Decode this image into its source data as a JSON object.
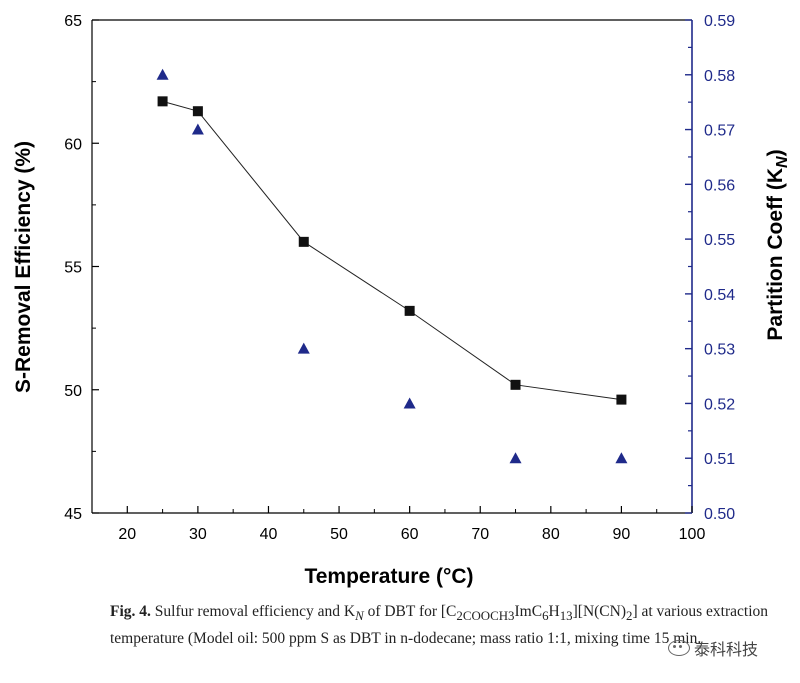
{
  "chart_data": {
    "type": "scatter",
    "xlabel": "Temperature (°C)",
    "ylabel": "S-Removal Efficiency (%)",
    "y2label": "Partition Coeff (K",
    "y2label_sub": "N",
    "xlim": [
      15,
      100
    ],
    "ylim": [
      45,
      65
    ],
    "y2lim": [
      0.5,
      0.59
    ],
    "xticks": [
      "20",
      "30",
      "40",
      "50",
      "60",
      "70",
      "80",
      "90",
      "100"
    ],
    "yticks": [
      "45",
      "50",
      "55",
      "60",
      "65"
    ],
    "y2ticks": [
      "0.50",
      "0.51",
      "0.52",
      "0.53",
      "0.54",
      "0.55",
      "0.56",
      "0.57",
      "0.58",
      "0.59"
    ],
    "series": [
      {
        "marker": "square",
        "axis": "left",
        "line": true,
        "color": "#111111",
        "x": [
          25,
          30,
          45,
          60,
          75,
          90
        ],
        "y": [
          61.7,
          61.3,
          56.0,
          53.2,
          50.2,
          49.6
        ]
      },
      {
        "marker": "triangle",
        "axis": "right",
        "line": false,
        "color": "#1f2a8a",
        "x": [
          25,
          30,
          45,
          60,
          75,
          90
        ],
        "y": [
          0.58,
          0.57,
          0.53,
          0.52,
          0.51,
          0.51
        ]
      }
    ],
    "right_axis_color": "#1f2a8a"
  },
  "caption": {
    "label": "Fig. 4.",
    "text": "Sulfur removal efficiency and K",
    "sub": "N",
    "text2": " of DBT for [C",
    "sub2": "2COOCH3",
    "text3": "ImC",
    "sub3": "6",
    "text4": "H",
    "sub4": "13",
    "text5": "][N(CN)",
    "sub5": "2",
    "text6": "] at various extraction temperature (Model oil: 500 ppm S as DBT in n-dodecane; mass ratio 1:1, mixing time 15 min."
  },
  "watermark": {
    "text": "泰科科技"
  }
}
